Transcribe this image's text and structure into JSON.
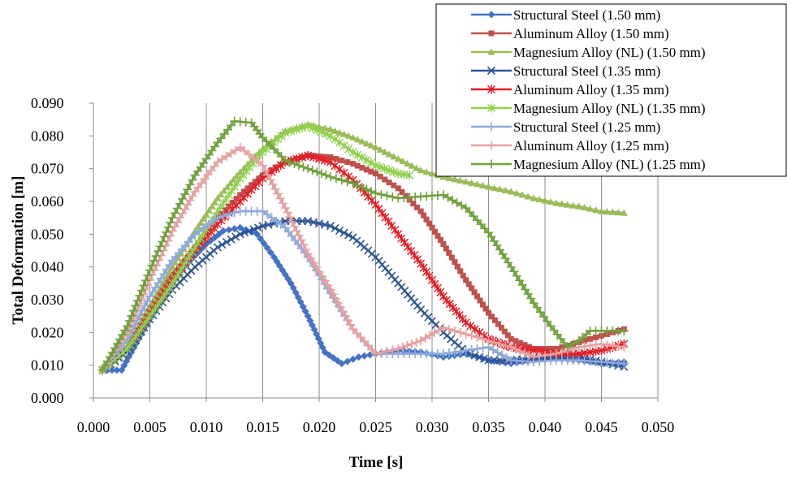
{
  "chart_data": {
    "type": "line",
    "title": "",
    "xlabel": "Time [s]",
    "ylabel": "Total Deformation [m]",
    "xlim": [
      0.0,
      0.05
    ],
    "ylim": [
      0.0,
      0.09
    ],
    "x_ticks": [
      "0.000",
      "0.005",
      "0.010",
      "0.015",
      "0.020",
      "0.025",
      "0.030",
      "0.035",
      "0.040",
      "0.045",
      "0.050"
    ],
    "y_ticks": [
      "0.000",
      "0.010",
      "0.020",
      "0.030",
      "0.040",
      "0.050",
      "0.060",
      "0.070",
      "0.080",
      "0.090"
    ],
    "grid": "vertical",
    "legend_position": "top-right",
    "series": [
      {
        "name": "Structural Steel (1.50 mm)",
        "color": "#4472C4",
        "marker": "diamond",
        "points": [
          [
            0.0008,
            0.0085
          ],
          [
            0.0025,
            0.0085
          ],
          [
            0.004,
            0.018
          ],
          [
            0.006,
            0.03
          ],
          [
            0.008,
            0.04
          ],
          [
            0.01,
            0.047
          ],
          [
            0.0115,
            0.051
          ],
          [
            0.013,
            0.052
          ],
          [
            0.0145,
            0.05
          ],
          [
            0.016,
            0.043
          ],
          [
            0.0175,
            0.035
          ],
          [
            0.019,
            0.025
          ],
          [
            0.0205,
            0.014
          ],
          [
            0.022,
            0.0105
          ],
          [
            0.0235,
            0.0125
          ],
          [
            0.025,
            0.0135
          ],
          [
            0.027,
            0.0145
          ],
          [
            0.029,
            0.014
          ],
          [
            0.031,
            0.0125
          ],
          [
            0.033,
            0.0135
          ],
          [
            0.035,
            0.0115
          ],
          [
            0.037,
            0.0105
          ],
          [
            0.039,
            0.0115
          ],
          [
            0.041,
            0.012
          ],
          [
            0.043,
            0.0115
          ],
          [
            0.045,
            0.0105
          ],
          [
            0.047,
            0.011
          ]
        ]
      },
      {
        "name": "Aluminum Alloy (1.50 mm)",
        "color": "#C0504D",
        "marker": "square",
        "points": [
          [
            0.0008,
            0.0085
          ],
          [
            0.003,
            0.015
          ],
          [
            0.005,
            0.027
          ],
          [
            0.007,
            0.037
          ],
          [
            0.009,
            0.046
          ],
          [
            0.011,
            0.055
          ],
          [
            0.013,
            0.062
          ],
          [
            0.015,
            0.068
          ],
          [
            0.017,
            0.072
          ],
          [
            0.019,
            0.074
          ],
          [
            0.021,
            0.0735
          ],
          [
            0.023,
            0.0715
          ],
          [
            0.025,
            0.0685
          ],
          [
            0.027,
            0.064
          ],
          [
            0.029,
            0.057
          ],
          [
            0.031,
            0.047
          ],
          [
            0.033,
            0.036
          ],
          [
            0.035,
            0.026
          ],
          [
            0.037,
            0.018
          ],
          [
            0.039,
            0.015
          ],
          [
            0.041,
            0.015
          ],
          [
            0.043,
            0.017
          ],
          [
            0.045,
            0.019
          ],
          [
            0.047,
            0.021
          ]
        ]
      },
      {
        "name": "Magnesium Alloy (NL) (1.50 mm)",
        "color": "#9BBB59",
        "marker": "triangle",
        "points": [
          [
            0.0008,
            0.0085
          ],
          [
            0.003,
            0.016
          ],
          [
            0.005,
            0.028
          ],
          [
            0.007,
            0.04
          ],
          [
            0.009,
            0.051
          ],
          [
            0.011,
            0.061
          ],
          [
            0.013,
            0.069
          ],
          [
            0.015,
            0.076
          ],
          [
            0.017,
            0.0815
          ],
          [
            0.019,
            0.0835
          ],
          [
            0.021,
            0.082
          ],
          [
            0.023,
            0.0795
          ],
          [
            0.025,
            0.0765
          ],
          [
            0.027,
            0.073
          ],
          [
            0.029,
            0.0695
          ],
          [
            0.031,
            0.0675
          ],
          [
            0.033,
            0.066
          ],
          [
            0.035,
            0.0645
          ],
          [
            0.037,
            0.063
          ],
          [
            0.039,
            0.061
          ],
          [
            0.041,
            0.0595
          ],
          [
            0.043,
            0.0585
          ],
          [
            0.045,
            0.057
          ],
          [
            0.047,
            0.0565
          ]
        ]
      },
      {
        "name": "Structural Steel (1.35 mm)",
        "color": "#2F5597",
        "marker": "x",
        "points": [
          [
            0.0008,
            0.0085
          ],
          [
            0.003,
            0.014
          ],
          [
            0.005,
            0.024
          ],
          [
            0.007,
            0.033
          ],
          [
            0.009,
            0.04
          ],
          [
            0.011,
            0.046
          ],
          [
            0.013,
            0.05
          ],
          [
            0.015,
            0.0525
          ],
          [
            0.017,
            0.054
          ],
          [
            0.019,
            0.054
          ],
          [
            0.021,
            0.0525
          ],
          [
            0.023,
            0.049
          ],
          [
            0.025,
            0.043
          ],
          [
            0.027,
            0.035
          ],
          [
            0.029,
            0.027
          ],
          [
            0.031,
            0.02
          ],
          [
            0.033,
            0.014
          ],
          [
            0.035,
            0.0115
          ],
          [
            0.037,
            0.0115
          ],
          [
            0.039,
            0.012
          ],
          [
            0.041,
            0.0125
          ],
          [
            0.043,
            0.0125
          ],
          [
            0.045,
            0.011
          ],
          [
            0.047,
            0.0095
          ]
        ]
      },
      {
        "name": "Aluminum Alloy (1.35 mm)",
        "color": "#E41E26",
        "marker": "star",
        "points": [
          [
            0.0008,
            0.0085
          ],
          [
            0.003,
            0.015
          ],
          [
            0.005,
            0.026
          ],
          [
            0.007,
            0.036
          ],
          [
            0.009,
            0.045
          ],
          [
            0.011,
            0.053
          ],
          [
            0.013,
            0.06
          ],
          [
            0.015,
            0.067
          ],
          [
            0.017,
            0.072
          ],
          [
            0.019,
            0.074
          ],
          [
            0.021,
            0.072
          ],
          [
            0.023,
            0.0665
          ],
          [
            0.025,
            0.059
          ],
          [
            0.027,
            0.05
          ],
          [
            0.029,
            0.041
          ],
          [
            0.031,
            0.031
          ],
          [
            0.033,
            0.023
          ],
          [
            0.035,
            0.018
          ],
          [
            0.037,
            0.0155
          ],
          [
            0.039,
            0.0145
          ],
          [
            0.041,
            0.0135
          ],
          [
            0.043,
            0.0135
          ],
          [
            0.045,
            0.0145
          ],
          [
            0.047,
            0.0165
          ]
        ]
      },
      {
        "name": "Magnesium Alloy (NL) (1.35 mm)",
        "color": "#92D050",
        "marker": "asterisk",
        "points": [
          [
            0.0008,
            0.0085
          ],
          [
            0.003,
            0.015
          ],
          [
            0.005,
            0.025
          ],
          [
            0.007,
            0.035
          ],
          [
            0.009,
            0.046
          ],
          [
            0.011,
            0.057
          ],
          [
            0.013,
            0.067
          ],
          [
            0.015,
            0.075
          ],
          [
            0.017,
            0.081
          ],
          [
            0.019,
            0.083
          ],
          [
            0.021,
            0.08
          ],
          [
            0.023,
            0.075
          ],
          [
            0.025,
            0.071
          ],
          [
            0.027,
            0.0685
          ],
          [
            0.028,
            0.068
          ]
        ]
      },
      {
        "name": "Structural Steel (1.25 mm)",
        "color": "#8EA9DB",
        "marker": "plus",
        "points": [
          [
            0.0008,
            0.0085
          ],
          [
            0.003,
            0.018
          ],
          [
            0.005,
            0.031
          ],
          [
            0.007,
            0.042
          ],
          [
            0.009,
            0.05
          ],
          [
            0.011,
            0.055
          ],
          [
            0.013,
            0.057
          ],
          [
            0.015,
            0.057
          ],
          [
            0.017,
            0.052
          ],
          [
            0.019,
            0.043
          ],
          [
            0.021,
            0.032
          ],
          [
            0.023,
            0.021
          ],
          [
            0.025,
            0.0135
          ],
          [
            0.027,
            0.0135
          ],
          [
            0.029,
            0.0135
          ],
          [
            0.031,
            0.0135
          ],
          [
            0.033,
            0.0145
          ],
          [
            0.035,
            0.0155
          ],
          [
            0.037,
            0.0115
          ],
          [
            0.039,
            0.011
          ],
          [
            0.041,
            0.0115
          ],
          [
            0.043,
            0.0115
          ],
          [
            0.045,
            0.011
          ],
          [
            0.047,
            0.0105
          ]
        ]
      },
      {
        "name": "Aluminum Alloy (1.25 mm)",
        "color": "#E6A0A0",
        "marker": "plus",
        "points": [
          [
            0.0008,
            0.0085
          ],
          [
            0.003,
            0.02
          ],
          [
            0.005,
            0.036
          ],
          [
            0.007,
            0.051
          ],
          [
            0.009,
            0.063
          ],
          [
            0.011,
            0.072
          ],
          [
            0.013,
            0.0765
          ],
          [
            0.015,
            0.071
          ],
          [
            0.017,
            0.058
          ],
          [
            0.019,
            0.044
          ],
          [
            0.021,
            0.033
          ],
          [
            0.023,
            0.021
          ],
          [
            0.025,
            0.0135
          ],
          [
            0.027,
            0.015
          ],
          [
            0.029,
            0.0175
          ],
          [
            0.031,
            0.0215
          ],
          [
            0.033,
            0.0195
          ],
          [
            0.035,
            0.0175
          ],
          [
            0.037,
            0.0155
          ],
          [
            0.039,
            0.0125
          ],
          [
            0.041,
            0.0135
          ],
          [
            0.043,
            0.0155
          ],
          [
            0.045,
            0.0165
          ],
          [
            0.047,
            0.0155
          ]
        ]
      },
      {
        "name": "Magnesium Alloy (NL) (1.25 mm)",
        "color": "#70A03C",
        "marker": "plus",
        "points": [
          [
            0.0008,
            0.0085
          ],
          [
            0.003,
            0.022
          ],
          [
            0.005,
            0.039
          ],
          [
            0.007,
            0.055
          ],
          [
            0.009,
            0.068
          ],
          [
            0.011,
            0.078
          ],
          [
            0.0125,
            0.0845
          ],
          [
            0.014,
            0.084
          ],
          [
            0.015,
            0.0795
          ],
          [
            0.017,
            0.0725
          ],
          [
            0.019,
            0.07
          ],
          [
            0.021,
            0.0675
          ],
          [
            0.023,
            0.0655
          ],
          [
            0.025,
            0.0625
          ],
          [
            0.027,
            0.061
          ],
          [
            0.029,
            0.0615
          ],
          [
            0.031,
            0.062
          ],
          [
            0.033,
            0.058
          ],
          [
            0.035,
            0.0505
          ],
          [
            0.037,
            0.04
          ],
          [
            0.039,
            0.029
          ],
          [
            0.0405,
            0.022
          ],
          [
            0.042,
            0.0155
          ],
          [
            0.043,
            0.0175
          ],
          [
            0.044,
            0.0205
          ],
          [
            0.046,
            0.0205
          ],
          [
            0.047,
            0.0205
          ]
        ]
      }
    ]
  }
}
